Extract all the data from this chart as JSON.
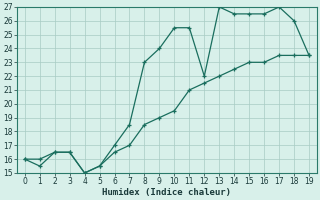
{
  "x": [
    0,
    1,
    2,
    3,
    4,
    5,
    6,
    7,
    8,
    9,
    10,
    11,
    12,
    13,
    14,
    15,
    16,
    17,
    18,
    19
  ],
  "line1": [
    16,
    16,
    16.5,
    16.5,
    15,
    15.5,
    17,
    18.5,
    23,
    24,
    25.5,
    25.5,
    22,
    27,
    26.5,
    26.5,
    26.5,
    27,
    26,
    23.5
  ],
  "line2": [
    16,
    15.5,
    16.5,
    16.5,
    15,
    15.5,
    16.5,
    17,
    18.5,
    19,
    19.5,
    21,
    21.5,
    22,
    22.5,
    23,
    23,
    23.5,
    23.5,
    23.5
  ],
  "line_color": "#1a6e5e",
  "bg_color": "#d8f0ea",
  "grid_major_color": "#b8d8d0",
  "grid_minor_color": "#e8c8c8",
  "xlabel": "Humidex (Indice chaleur)",
  "ylim": [
    15,
    27
  ],
  "xlim": [
    -0.5,
    19.5
  ],
  "yticks": [
    15,
    16,
    17,
    18,
    19,
    20,
    21,
    22,
    23,
    24,
    25,
    26,
    27
  ],
  "xticks": [
    0,
    1,
    2,
    3,
    4,
    5,
    6,
    7,
    8,
    9,
    10,
    11,
    12,
    13,
    14,
    15,
    16,
    17,
    18,
    19
  ],
  "tick_fontsize": 5.5,
  "xlabel_fontsize": 6.5
}
